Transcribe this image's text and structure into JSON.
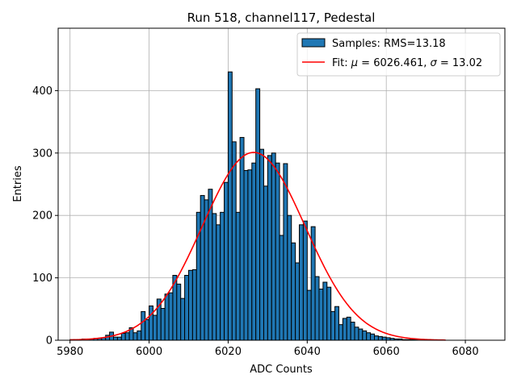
{
  "chart_data": {
    "type": "bar",
    "title": "Run 518, channel117, Pedestal",
    "xlabel": "ADC Counts",
    "ylabel": "Entries",
    "xlim": [
      5977,
      6090
    ],
    "ylim": [
      0,
      500
    ],
    "xticks": [
      5980,
      6000,
      6020,
      6040,
      6060,
      6080
    ],
    "yticks": [
      0,
      100,
      200,
      300,
      400
    ],
    "grid": true,
    "legend_position": "top-right",
    "bin_width": 1,
    "bin_start": 5980,
    "counts": [
      1,
      1,
      0,
      2,
      2,
      2,
      3,
      3,
      4,
      8,
      13,
      5,
      5,
      11,
      12,
      20,
      12,
      15,
      46,
      33,
      55,
      40,
      66,
      51,
      74,
      76,
      104,
      90,
      67,
      104,
      112,
      113,
      205,
      232,
      225,
      242,
      203,
      185,
      205,
      253,
      430,
      318,
      205,
      325,
      272,
      273,
      284,
      403,
      306,
      247,
      296,
      300,
      284,
      168,
      283,
      200,
      156,
      124,
      185,
      191,
      80,
      182,
      102,
      82,
      93,
      85,
      46,
      54,
      25,
      35,
      37,
      29,
      21,
      18,
      15,
      12,
      10,
      7,
      6,
      5,
      4,
      3,
      2,
      2,
      1,
      1,
      1,
      1,
      0,
      0,
      1,
      0,
      0,
      0,
      0
    ],
    "series": [
      {
        "name": "Samples: RMS=13.18",
        "kind": "histogram",
        "color": "#1f77b4",
        "edge_color": "#000000"
      },
      {
        "name": "Fit: μ = 6026.461, σ = 13.02",
        "kind": "gaussian_fit",
        "color": "#ff0000",
        "mu": 6026.461,
        "sigma": 13.02,
        "amplitude": 301,
        "x_range": [
          5980,
          6075
        ]
      }
    ],
    "legend": {
      "histogram_label_prefix": "Samples: RMS=13.18",
      "fit_label_prefix": "Fit: ",
      "fit_mu_symbol": "μ",
      "fit_mu_text": " = 6026.461, ",
      "fit_sigma_symbol": "σ",
      "fit_sigma_text": " = 13.02"
    }
  }
}
